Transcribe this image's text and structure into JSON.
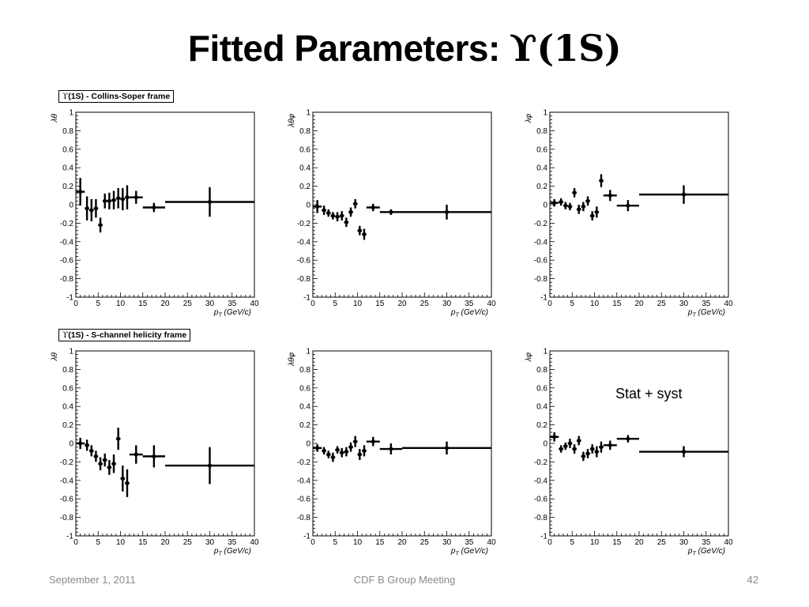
{
  "slide": {
    "title": "Fitted Parameters:",
    "title_symbol": "ϒ(1S)",
    "annotation": "Stat + syst"
  },
  "footer": {
    "date": "September 1, 2011",
    "center": "CDF B Group Meeting",
    "page": "42"
  },
  "frame_labels": {
    "cs": {
      "symbol": "ϒ",
      "text": "(1S) - Collins-Soper frame"
    },
    "hx": {
      "symbol": "ϒ",
      "text": "(1S) - S-channel helicity frame"
    }
  },
  "axes": {
    "xlabel": "p_T (GeV/c)",
    "xticks": [
      "0",
      "5",
      "10",
      "15",
      "20",
      "25",
      "30",
      "35",
      "40"
    ],
    "yticks": [
      "-1",
      "-0.8",
      "-0.6",
      "-0.4",
      "-0.2",
      "0",
      "0.2",
      "0.4",
      "0.6",
      "0.8",
      "1"
    ]
  },
  "chart_data": [
    {
      "type": "scatter",
      "frame": "Collins-Soper",
      "ylabel": "λθ",
      "xlim": [
        0,
        40
      ],
      "ylim": [
        -1,
        1
      ],
      "points": [
        {
          "x": 1,
          "xerr": 1,
          "y": 0.14,
          "yerr": 0.15
        },
        {
          "x": 2.5,
          "xerr": 0.5,
          "y": -0.04,
          "yerr": 0.13
        },
        {
          "x": 3.5,
          "xerr": 0.5,
          "y": -0.06,
          "yerr": 0.12
        },
        {
          "x": 4.5,
          "xerr": 0.5,
          "y": -0.04,
          "yerr": 0.1
        },
        {
          "x": 5.5,
          "xerr": 0.5,
          "y": -0.22,
          "yerr": 0.08
        },
        {
          "x": 6.5,
          "xerr": 0.5,
          "y": 0.04,
          "yerr": 0.08
        },
        {
          "x": 7.5,
          "xerr": 0.5,
          "y": 0.04,
          "yerr": 0.09
        },
        {
          "x": 8.5,
          "xerr": 0.5,
          "y": 0.05,
          "yerr": 0.1
        },
        {
          "x": 9.5,
          "xerr": 0.5,
          "y": 0.07,
          "yerr": 0.11
        },
        {
          "x": 10.5,
          "xerr": 0.5,
          "y": 0.06,
          "yerr": 0.12
        },
        {
          "x": 11.5,
          "xerr": 0.5,
          "y": 0.08,
          "yerr": 0.13
        },
        {
          "x": 13.5,
          "xerr": 1.5,
          "y": 0.08,
          "yerr": 0.07
        },
        {
          "x": 17.5,
          "xerr": 2.5,
          "y": -0.03,
          "yerr": 0.05
        },
        {
          "x": 30,
          "xerr": 10,
          "y": 0.03,
          "yerr": 0.16
        }
      ]
    },
    {
      "type": "scatter",
      "frame": "Collins-Soper",
      "ylabel": "λθφ",
      "xlim": [
        0,
        40
      ],
      "ylim": [
        -1,
        1
      ],
      "points": [
        {
          "x": 1,
          "xerr": 1,
          "y": -0.02,
          "yerr": 0.07
        },
        {
          "x": 2.5,
          "xerr": 0.5,
          "y": -0.06,
          "yerr": 0.05
        },
        {
          "x": 3.5,
          "xerr": 0.5,
          "y": -0.09,
          "yerr": 0.04
        },
        {
          "x": 4.5,
          "xerr": 0.5,
          "y": -0.12,
          "yerr": 0.04
        },
        {
          "x": 5.5,
          "xerr": 0.5,
          "y": -0.13,
          "yerr": 0.05
        },
        {
          "x": 6.5,
          "xerr": 0.5,
          "y": -0.12,
          "yerr": 0.05
        },
        {
          "x": 7.5,
          "xerr": 0.5,
          "y": -0.19,
          "yerr": 0.05
        },
        {
          "x": 8.5,
          "xerr": 0.5,
          "y": -0.08,
          "yerr": 0.05
        },
        {
          "x": 9.5,
          "xerr": 0.5,
          "y": 0.01,
          "yerr": 0.05
        },
        {
          "x": 10.5,
          "xerr": 0.5,
          "y": -0.28,
          "yerr": 0.05
        },
        {
          "x": 11.5,
          "xerr": 0.5,
          "y": -0.32,
          "yerr": 0.06
        },
        {
          "x": 13.5,
          "xerr": 1.5,
          "y": -0.03,
          "yerr": 0.04
        },
        {
          "x": 17.5,
          "xerr": 2.5,
          "y": -0.08,
          "yerr": 0.03
        },
        {
          "x": 30,
          "xerr": 10,
          "y": -0.08,
          "yerr": 0.08
        }
      ]
    },
    {
      "type": "scatter",
      "frame": "Collins-Soper",
      "ylabel": "λφ",
      "xlim": [
        0,
        40
      ],
      "ylim": [
        -1,
        1
      ],
      "points": [
        {
          "x": 1,
          "xerr": 1,
          "y": 0.02,
          "yerr": 0.04
        },
        {
          "x": 2.5,
          "xerr": 0.5,
          "y": 0.03,
          "yerr": 0.04
        },
        {
          "x": 3.5,
          "xerr": 0.5,
          "y": -0.01,
          "yerr": 0.04
        },
        {
          "x": 4.5,
          "xerr": 0.5,
          "y": -0.02,
          "yerr": 0.04
        },
        {
          "x": 5.5,
          "xerr": 0.5,
          "y": 0.13,
          "yerr": 0.05
        },
        {
          "x": 6.5,
          "xerr": 0.5,
          "y": -0.05,
          "yerr": 0.05
        },
        {
          "x": 7.5,
          "xerr": 0.5,
          "y": -0.02,
          "yerr": 0.05
        },
        {
          "x": 8.5,
          "xerr": 0.5,
          "y": 0.04,
          "yerr": 0.05
        },
        {
          "x": 9.5,
          "xerr": 0.5,
          "y": -0.12,
          "yerr": 0.05
        },
        {
          "x": 10.5,
          "xerr": 0.5,
          "y": -0.08,
          "yerr": 0.06
        },
        {
          "x": 11.5,
          "xerr": 0.5,
          "y": 0.26,
          "yerr": 0.07
        },
        {
          "x": 13.5,
          "xerr": 1.5,
          "y": 0.1,
          "yerr": 0.06
        },
        {
          "x": 17.5,
          "xerr": 2.5,
          "y": -0.01,
          "yerr": 0.06
        },
        {
          "x": 30,
          "xerr": 10,
          "y": 0.11,
          "yerr": 0.1
        }
      ]
    },
    {
      "type": "scatter",
      "frame": "S-channel helicity",
      "ylabel": "λθ",
      "xlim": [
        0,
        40
      ],
      "ylim": [
        -1,
        1
      ],
      "points": [
        {
          "x": 1,
          "xerr": 1,
          "y": 0.0,
          "yerr": 0.06
        },
        {
          "x": 2.5,
          "xerr": 0.5,
          "y": -0.02,
          "yerr": 0.06
        },
        {
          "x": 3.5,
          "xerr": 0.5,
          "y": -0.08,
          "yerr": 0.06
        },
        {
          "x": 4.5,
          "xerr": 0.5,
          "y": -0.14,
          "yerr": 0.06
        },
        {
          "x": 5.5,
          "xerr": 0.5,
          "y": -0.22,
          "yerr": 0.07
        },
        {
          "x": 6.5,
          "xerr": 0.5,
          "y": -0.18,
          "yerr": 0.07
        },
        {
          "x": 7.5,
          "xerr": 0.5,
          "y": -0.26,
          "yerr": 0.08
        },
        {
          "x": 8.5,
          "xerr": 0.5,
          "y": -0.22,
          "yerr": 0.1
        },
        {
          "x": 9.5,
          "xerr": 0.5,
          "y": 0.05,
          "yerr": 0.12
        },
        {
          "x": 10.5,
          "xerr": 0.5,
          "y": -0.38,
          "yerr": 0.14
        },
        {
          "x": 11.5,
          "xerr": 0.5,
          "y": -0.43,
          "yerr": 0.15
        },
        {
          "x": 13.5,
          "xerr": 1.5,
          "y": -0.12,
          "yerr": 0.1
        },
        {
          "x": 17.5,
          "xerr": 2.5,
          "y": -0.14,
          "yerr": 0.12
        },
        {
          "x": 30,
          "xerr": 10,
          "y": -0.24,
          "yerr": 0.2
        }
      ]
    },
    {
      "type": "scatter",
      "frame": "S-channel helicity",
      "ylabel": "λθφ",
      "xlim": [
        0,
        40
      ],
      "ylim": [
        -1,
        1
      ],
      "points": [
        {
          "x": 1,
          "xerr": 1,
          "y": -0.05,
          "yerr": 0.04
        },
        {
          "x": 2.5,
          "xerr": 0.5,
          "y": -0.08,
          "yerr": 0.04
        },
        {
          "x": 3.5,
          "xerr": 0.5,
          "y": -0.12,
          "yerr": 0.04
        },
        {
          "x": 4.5,
          "xerr": 0.5,
          "y": -0.15,
          "yerr": 0.05
        },
        {
          "x": 5.5,
          "xerr": 0.5,
          "y": -0.07,
          "yerr": 0.04
        },
        {
          "x": 6.5,
          "xerr": 0.5,
          "y": -0.1,
          "yerr": 0.05
        },
        {
          "x": 7.5,
          "xerr": 0.5,
          "y": -0.09,
          "yerr": 0.05
        },
        {
          "x": 8.5,
          "xerr": 0.5,
          "y": -0.04,
          "yerr": 0.05
        },
        {
          "x": 9.5,
          "xerr": 0.5,
          "y": 0.02,
          "yerr": 0.06
        },
        {
          "x": 10.5,
          "xerr": 0.5,
          "y": -0.12,
          "yerr": 0.06
        },
        {
          "x": 11.5,
          "xerr": 0.5,
          "y": -0.08,
          "yerr": 0.06
        },
        {
          "x": 13.5,
          "xerr": 1.5,
          "y": 0.02,
          "yerr": 0.05
        },
        {
          "x": 17.5,
          "xerr": 2.5,
          "y": -0.06,
          "yerr": 0.06
        },
        {
          "x": 30,
          "xerr": 10,
          "y": -0.05,
          "yerr": 0.07
        }
      ]
    },
    {
      "type": "scatter",
      "frame": "S-channel helicity",
      "ylabel": "λφ",
      "xlim": [
        0,
        40
      ],
      "ylim": [
        -1,
        1
      ],
      "points": [
        {
          "x": 1,
          "xerr": 1,
          "y": 0.07,
          "yerr": 0.05
        },
        {
          "x": 2.5,
          "xerr": 0.5,
          "y": -0.06,
          "yerr": 0.04
        },
        {
          "x": 3.5,
          "xerr": 0.5,
          "y": -0.03,
          "yerr": 0.04
        },
        {
          "x": 4.5,
          "xerr": 0.5,
          "y": 0.0,
          "yerr": 0.05
        },
        {
          "x": 5.5,
          "xerr": 0.5,
          "y": -0.06,
          "yerr": 0.05
        },
        {
          "x": 6.5,
          "xerr": 0.5,
          "y": 0.03,
          "yerr": 0.05
        },
        {
          "x": 7.5,
          "xerr": 0.5,
          "y": -0.14,
          "yerr": 0.05
        },
        {
          "x": 8.5,
          "xerr": 0.5,
          "y": -0.11,
          "yerr": 0.05
        },
        {
          "x": 9.5,
          "xerr": 0.5,
          "y": -0.06,
          "yerr": 0.05
        },
        {
          "x": 10.5,
          "xerr": 0.5,
          "y": -0.09,
          "yerr": 0.06
        },
        {
          "x": 11.5,
          "xerr": 0.5,
          "y": -0.04,
          "yerr": 0.06
        },
        {
          "x": 13.5,
          "xerr": 1.5,
          "y": -0.02,
          "yerr": 0.05
        },
        {
          "x": 17.5,
          "xerr": 2.5,
          "y": 0.05,
          "yerr": 0.04
        },
        {
          "x": 30,
          "xerr": 10,
          "y": -0.09,
          "yerr": 0.06
        }
      ]
    }
  ]
}
